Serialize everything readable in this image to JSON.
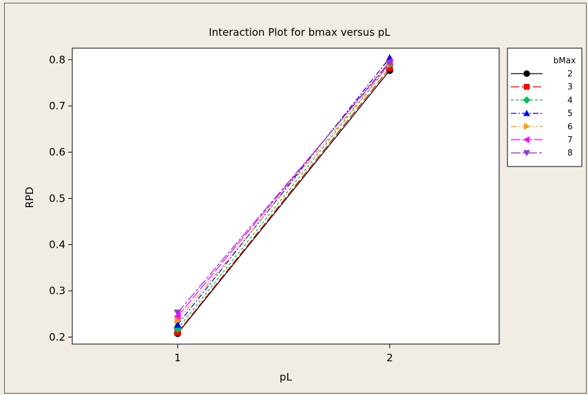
{
  "chart_data": {
    "type": "line",
    "title": "Interaction Plot for bmax versus pL",
    "xlabel": "pL",
    "ylabel": "RPD",
    "categories": [
      "1",
      "2"
    ],
    "ylim": [
      0.185,
      0.825
    ],
    "yticks": [
      0.2,
      0.3,
      0.4,
      0.5,
      0.6,
      0.7,
      0.8
    ],
    "ytick_labels": [
      "0.2",
      "0.3",
      "0.4",
      "0.5",
      "0.6",
      "0.7",
      "0.8"
    ],
    "grid": false,
    "legend": {
      "title": "bMax",
      "placement": "right"
    },
    "series": [
      {
        "name": "2",
        "values": [
          0.208,
          0.777
        ],
        "color": "#000000",
        "marker": "circle",
        "dash": ""
      },
      {
        "name": "3",
        "values": [
          0.21,
          0.782
        ],
        "color": "#ff0000",
        "marker": "square",
        "dash": "12,4"
      },
      {
        "name": "4",
        "values": [
          0.218,
          0.79
        ],
        "color": "#00c050",
        "marker": "diamond",
        "dash": "4,3"
      },
      {
        "name": "5",
        "values": [
          0.227,
          0.804
        ],
        "color": "#0000ff",
        "marker": "triangle-up",
        "dash": "8,3,2,3"
      },
      {
        "name": "6",
        "values": [
          0.236,
          0.79
        ],
        "color": "#ff9900",
        "marker": "triangle-right",
        "dash": "8,3,2,3,2,3"
      },
      {
        "name": "7",
        "values": [
          0.245,
          0.796
        ],
        "color": "#ff00ff",
        "marker": "triangle-left",
        "dash": "14,3"
      },
      {
        "name": "8",
        "values": [
          0.253,
          0.793
        ],
        "color": "#9933cc",
        "marker": "triangle-down",
        "dash": "14,3,4,3"
      }
    ]
  }
}
